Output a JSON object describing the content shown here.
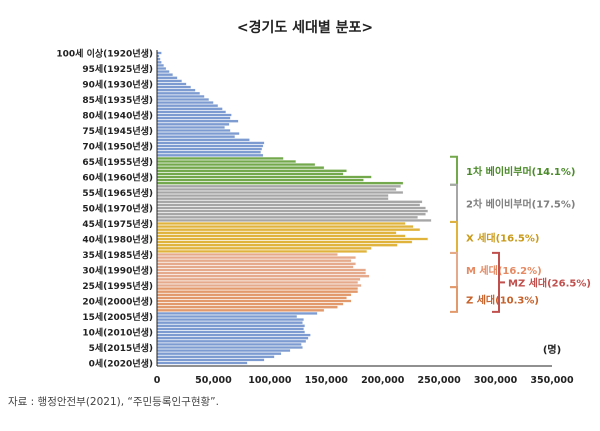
{
  "chart_data": {
    "type": "bar",
    "orientation": "horizontal",
    "title": "<경기도 세대별 분포>",
    "unit_label": "(명)",
    "source": "자료 : 행정안전부(2021), “주민등록인구현황”.",
    "xlim": [
      0,
      350000
    ],
    "x_ticks": [
      "0",
      "50,000",
      "100,000",
      "150,000",
      "200,000",
      "250,000",
      "300,000",
      "350,000"
    ],
    "age_labels": [
      "100세 이상(1920년생)",
      "95세(1925년생)",
      "90세(1930년생)",
      "85세(1935년생)",
      "80세(1940년생)",
      "75세(1945년생)",
      "70세(1950년생)",
      "65세(1955년생)",
      "60세(1960년생)",
      "55세(1965년생)",
      "50세(1970년생)",
      "45세(1975년생)",
      "40세(1980년생)",
      "35세(1985년생)",
      "30세(1990년생)",
      "25세(1995년생)",
      "20세(2000년생)",
      "15세(2005년생)",
      "10세(2010년생)",
      "5세(2015년생)",
      "0세(2020년생)"
    ],
    "ages": [
      100,
      99,
      98,
      97,
      96,
      95,
      94,
      93,
      92,
      91,
      90,
      89,
      88,
      87,
      86,
      85,
      84,
      83,
      82,
      81,
      80,
      79,
      78,
      77,
      76,
      75,
      74,
      73,
      72,
      71,
      70,
      69,
      68,
      67,
      66,
      65,
      64,
      63,
      62,
      61,
      60,
      59,
      58,
      57,
      56,
      55,
      54,
      53,
      52,
      51,
      50,
      49,
      48,
      47,
      46,
      45,
      44,
      43,
      42,
      41,
      40,
      39,
      38,
      37,
      36,
      35,
      34,
      33,
      32,
      31,
      30,
      29,
      28,
      27,
      26,
      25,
      24,
      23,
      22,
      21,
      20,
      19,
      18,
      17,
      16,
      15,
      14,
      13,
      12,
      11,
      10,
      9,
      8,
      7,
      6,
      5,
      4,
      3,
      2,
      1,
      0
    ],
    "values": [
      4000,
      2000,
      3000,
      4000,
      6000,
      8000,
      11000,
      14000,
      18000,
      22000,
      26000,
      30000,
      34000,
      38000,
      42000,
      46000,
      50000,
      54000,
      58000,
      61000,
      66000,
      65000,
      72000,
      64000,
      60000,
      65000,
      73000,
      69000,
      82000,
      95000,
      94000,
      93000,
      92000,
      94000,
      112000,
      123000,
      140000,
      148000,
      168000,
      165000,
      190000,
      183000,
      218000,
      216000,
      212000,
      218000,
      205000,
      205000,
      235000,
      233000,
      238000,
      240000,
      238000,
      231000,
      243000,
      220000,
      227000,
      233000,
      212000,
      220000,
      240000,
      226000,
      213000,
      190000,
      186000,
      160000,
      176000,
      172000,
      176000,
      174000,
      185000,
      185000,
      188000,
      180000,
      178000,
      181000,
      178000,
      178000,
      172000,
      168000,
      172000,
      165000,
      160000,
      148000,
      142000,
      124000,
      130000,
      129000,
      131000,
      130000,
      131000,
      136000,
      134000,
      132000,
      128000,
      129000,
      118000,
      110000,
      104000,
      95000,
      80000
    ],
    "segments": [
      {
        "name": "1차 베이비부머(14.1%)",
        "from": 66,
        "to": 58,
        "color": "#73a84c",
        "label_color": "#4b8a2a"
      },
      {
        "name": "2차 베이비부머(17.5%)",
        "from": 57,
        "to": 46,
        "color": "#a6a6a6",
        "label_color": "#7f7f7f"
      },
      {
        "name": "X 세대(16.5%)",
        "from": 45,
        "to": 36,
        "color": "#e0b43c",
        "label_color": "#c99a1a"
      },
      {
        "name": "M 세대(16.2%)",
        "from": 35,
        "to": 25,
        "color": "#e5a98b",
        "label_color": "#e58a63"
      },
      {
        "name": "Z 세대(10.3%)",
        "from": 24,
        "to": 17,
        "color": "#e2996b",
        "label_color": "#c7612a"
      },
      {
        "name": "MZ 세대(26.5%)",
        "from": 35,
        "to": 17,
        "label_color": "#c0504d"
      }
    ],
    "default_color": "#7d9bd0",
    "grid": false,
    "legend": "bracket-labels-right"
  }
}
